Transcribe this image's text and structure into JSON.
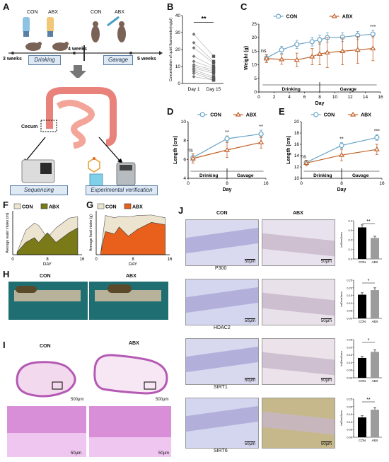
{
  "panels": {
    "A": "A",
    "B": "B",
    "C": "C",
    "D": "D",
    "E": "E",
    "F": "F",
    "G": "G",
    "H": "H",
    "I": "I",
    "J": "J"
  },
  "panel_a": {
    "group_con": "CON",
    "group_abx": "ABX",
    "group_con2": "CON",
    "group_abx2": "ABX",
    "time_3w": "3 weeks",
    "time_4w": "4 weeks",
    "time_5w": "5 weeks",
    "drinking": "Drinking",
    "gavage": "Gavage",
    "cecum": "Cecum",
    "sequencing": "Sequencing",
    "experimental_verification": "Experimental verification"
  },
  "panel_h": {
    "con": "CON",
    "abx": "ABX"
  },
  "panel_i": {
    "con": "CON",
    "abx": "ABX",
    "sb1": "500μm",
    "sb2": "500μm",
    "sb3": "50μm",
    "sb4": "50μm"
  },
  "panel_j": {
    "con": "CON",
    "abx": "ABX",
    "rows": [
      "P300",
      "HDAC2",
      "SIRT1",
      "SIRT6"
    ],
    "scalebar": "50μm",
    "ylabel": "IntDen/Area",
    "sig": [
      "**",
      "*",
      "*",
      "**"
    ]
  },
  "colors": {
    "con": "#6aa5c8",
    "abx": "#c0622a",
    "con_fill": "#ece4cf",
    "abx_fill_f": "#7a7a18",
    "abx_fill_g": "#e8601c"
  },
  "chart_data": [
    {
      "id": "B",
      "type": "scatter",
      "ylabel": "Concentration of qubit fluorometer(ng/μl)",
      "categories": [
        "Day 1",
        "Day 15"
      ],
      "ylim": [
        0,
        40
      ],
      "yticks": [
        0,
        10,
        20,
        30,
        40
      ],
      "pairs": [
        [
          29,
          16
        ],
        [
          24,
          13
        ],
        [
          21,
          12
        ],
        [
          16,
          10
        ],
        [
          13,
          9
        ],
        [
          11,
          8
        ],
        [
          10,
          7
        ],
        [
          9,
          6
        ],
        [
          8,
          4
        ],
        [
          7,
          3
        ],
        [
          6,
          2
        ],
        [
          4,
          2
        ]
      ],
      "significance": "**"
    },
    {
      "id": "C",
      "type": "line",
      "xlabel": "Day",
      "ylabel": "Weight (g)",
      "xlim": [
        0,
        16
      ],
      "ylim": [
        0,
        25
      ],
      "xticks": [
        0,
        2,
        4,
        6,
        8,
        10,
        12,
        14,
        16
      ],
      "yticks": [
        0,
        5,
        10,
        15,
        20,
        25
      ],
      "x": [
        1,
        3,
        5,
        7,
        8,
        9,
        11,
        13,
        15
      ],
      "series": [
        {
          "name": "CON",
          "values": [
            12.5,
            15.5,
            17.5,
            18.5,
            19.2,
            20.0,
            20.2,
            20.8,
            21.3
          ],
          "err": [
            1.2,
            1.3,
            1.5,
            1.6,
            1.7,
            1.8,
            1.6,
            1.5,
            1.4
          ]
        },
        {
          "name": "ABX",
          "values": [
            12.3,
            12.0,
            11.8,
            13.0,
            14.0,
            14.5,
            15.0,
            15.5,
            16.0
          ],
          "err": [
            1.5,
            1.8,
            2.5,
            3.0,
            4.0,
            5.5,
            5.0,
            5.0,
            4.5
          ]
        }
      ],
      "annotations": [
        "ns",
        "***"
      ],
      "phases": [
        "Drinking",
        "Gavage"
      ]
    },
    {
      "id": "D",
      "type": "line",
      "xlabel": "Day",
      "ylabel": "Length (cm)",
      "xlim": [
        0,
        16
      ],
      "ylim": [
        4,
        10
      ],
      "xticks": [
        0,
        8,
        16
      ],
      "yticks": [
        4,
        6,
        8,
        10
      ],
      "x": [
        1,
        8,
        15
      ],
      "series": [
        {
          "name": "CON",
          "values": [
            6.2,
            8.2,
            8.7
          ],
          "err": [
            0.4,
            0.3,
            0.4
          ]
        },
        {
          "name": "ABX",
          "values": [
            6.1,
            7.0,
            7.8
          ],
          "err": [
            0.5,
            0.8,
            0.6
          ]
        }
      ],
      "annotations": [
        "ns",
        "**",
        "**"
      ],
      "phases": [
        "Drinking",
        "Gavage"
      ]
    },
    {
      "id": "E",
      "type": "line",
      "xlabel": "Day",
      "ylabel": "Length (cm)",
      "xlim": [
        0,
        16
      ],
      "ylim": [
        10,
        20
      ],
      "xticks": [
        0,
        8,
        16
      ],
      "yticks": [
        10,
        12,
        14,
        16,
        18,
        20
      ],
      "x": [
        1,
        8,
        15
      ],
      "series": [
        {
          "name": "CON",
          "values": [
            12.8,
            15.8,
            17.2
          ],
          "err": [
            0.4,
            0.5,
            0.5
          ]
        },
        {
          "name": "ABX",
          "values": [
            12.7,
            14.1,
            15.1
          ],
          "err": [
            0.5,
            1.0,
            0.9
          ]
        }
      ],
      "annotations": [
        "ns",
        "**",
        "***"
      ],
      "phases": [
        "Drinking",
        "Gavage"
      ]
    },
    {
      "id": "F",
      "type": "area",
      "xlabel": "DAY",
      "ylabel": "Average water intake (ml)",
      "xlim": [
        0,
        16
      ],
      "xticks": [
        0,
        8,
        16
      ],
      "x": [
        1,
        3,
        5,
        6,
        8,
        10,
        13,
        15
      ],
      "series": [
        {
          "name": "CON",
          "values": [
            0.5,
            5.0,
            6.5,
            6.0,
            3.5,
            5.5,
            7.5,
            7.8
          ]
        },
        {
          "name": "ABX",
          "values": [
            0.5,
            2.5,
            3.5,
            2.5,
            4.5,
            2.5,
            4.5,
            5.5
          ]
        }
      ]
    },
    {
      "id": "G",
      "type": "area",
      "xlabel": "DAY",
      "ylabel": "Average food intake (g)",
      "xlim": [
        0,
        16
      ],
      "xticks": [
        0,
        8,
        16
      ],
      "x": [
        1,
        2,
        4,
        5,
        7,
        9,
        12,
        15
      ],
      "series": [
        {
          "name": "CON",
          "values": [
            0.5,
            8.5,
            8.0,
            8.3,
            8.2,
            8.5,
            8.6,
            8.0
          ]
        },
        {
          "name": "ABX",
          "values": [
            0.5,
            5.0,
            4.5,
            6.0,
            4.0,
            5.5,
            7.0,
            6.5
          ]
        }
      ]
    },
    {
      "id": "J-P300",
      "type": "bar",
      "categories": [
        "CON",
        "ABX"
      ],
      "values": [
        0.33,
        0.22
      ],
      "ylabel": "IntDen/Area",
      "ylim": [
        0,
        0.4
      ],
      "yticks": [
        0.0,
        0.1,
        0.2,
        0.3,
        0.4
      ],
      "significance": "**"
    },
    {
      "id": "J-HDAC2",
      "type": "bar",
      "categories": [
        "CON",
        "ABX"
      ],
      "values": [
        0.155,
        0.185
      ],
      "ylabel": "IntDen/Area",
      "ylim": [
        0,
        0.25
      ],
      "yticks": [
        0.0,
        0.05,
        0.1,
        0.15,
        0.2,
        0.25
      ],
      "significance": "*"
    },
    {
      "id": "J-SIRT1",
      "type": "bar",
      "categories": [
        "CON",
        "ABX"
      ],
      "values": [
        0.13,
        0.17
      ],
      "ylabel": "IntDen/Area",
      "ylim": [
        0,
        0.25
      ],
      "yticks": [
        0.0,
        0.05,
        0.1,
        0.15,
        0.2,
        0.25
      ],
      "significance": "*"
    },
    {
      "id": "J-SIRT6",
      "type": "bar",
      "categories": [
        "CON",
        "ABX"
      ],
      "values": [
        0.13,
        0.18
      ],
      "ylabel": "IntDen/Area",
      "ylim": [
        0,
        0.25
      ],
      "yticks": [
        0.0,
        0.05,
        0.1,
        0.15,
        0.2,
        0.25
      ],
      "significance": "**"
    }
  ]
}
